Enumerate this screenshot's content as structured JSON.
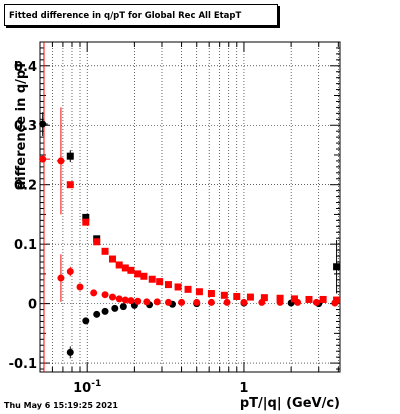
{
  "title": "Fitted difference in q/pT for Global Rec All EtapT",
  "timestamp": "Thu May  6 15:19:25 2021",
  "chart_data": {
    "type": "scatter",
    "title": "Fitted difference in q/pT for Global Rec All EtapT",
    "xlabel": "pT/|q| (GeV/c)",
    "ylabel": "difference in q/pT",
    "x_scale": "log",
    "xlim": [
      0.05,
      4.1
    ],
    "ylim": [
      -0.115,
      0.44
    ],
    "grid": true,
    "x_ticks": [
      {
        "value": 0.1,
        "label": "10",
        "sup": "-1"
      },
      {
        "value": 1,
        "label": "1",
        "sup": ""
      }
    ],
    "y_ticks": [
      {
        "value": -0.1,
        "label": "-0.1"
      },
      {
        "value": 0,
        "label": "0"
      },
      {
        "value": 0.1,
        "label": "0.1"
      },
      {
        "value": 0.2,
        "label": "0.2"
      },
      {
        "value": 0.3,
        "label": "0.3"
      },
      {
        "value": 0.4,
        "label": "0.4"
      }
    ],
    "red_line_x": 0.053,
    "series": [
      {
        "marker": "square",
        "color": "#000000",
        "points": [
          {
            "x": 0.078,
            "y": 0.248,
            "yerr": 0.01,
            "xerr": 0.003
          },
          {
            "x": 0.098,
            "y": 0.145,
            "yerr": 0.004,
            "xerr": 0.004
          },
          {
            "x": 0.115,
            "y": 0.109,
            "yerr": 0.003,
            "xerr": 0.005
          },
          {
            "x": 3.9,
            "y": 0.062,
            "yerr": 0.045,
            "xerr": 0.08
          }
        ]
      },
      {
        "marker": "circle",
        "color": "#000000",
        "points": [
          {
            "x": 0.052,
            "y": 0.302,
            "yerr": 0.02,
            "xerr": 0.004
          },
          {
            "x": 0.078,
            "y": -0.082,
            "yerr": 0.01,
            "xerr": 0.003
          },
          {
            "x": 0.098,
            "y": -0.029,
            "yerr": 0.004,
            "xerr": 0.003
          },
          {
            "x": 0.115,
            "y": -0.018,
            "yerr": 0.003,
            "xerr": 0.004
          },
          {
            "x": 0.13,
            "y": -0.013,
            "yerr": 0.002,
            "xerr": 0.004
          },
          {
            "x": 0.15,
            "y": -0.008,
            "yerr": 0.002,
            "xerr": 0.004
          },
          {
            "x": 0.17,
            "y": -0.005,
            "yerr": 0.001,
            "xerr": 0.004
          },
          {
            "x": 0.2,
            "y": -0.003,
            "yerr": 0.001,
            "xerr": 0.005
          },
          {
            "x": 0.25,
            "y": -0.002,
            "yerr": 0.001,
            "xerr": 0.005
          },
          {
            "x": 0.35,
            "y": -0.001,
            "yerr": 0.001,
            "xerr": 0.006
          },
          {
            "x": 0.5,
            "y": 0.0,
            "yerr": 0.001,
            "xerr": 0.008
          },
          {
            "x": 1.0,
            "y": 0.001,
            "yerr": 0.001,
            "xerr": 0.01
          },
          {
            "x": 2.0,
            "y": 0.001,
            "yerr": 0.001,
            "xerr": 0.02
          },
          {
            "x": 3.0,
            "y": 0.0,
            "yerr": 0.002,
            "xerr": 0.04
          }
        ]
      },
      {
        "marker": "square",
        "color": "#ff0000",
        "points": [
          {
            "x": 0.078,
            "y": 0.2,
            "yerr": 0.004,
            "xerr": 0.003
          },
          {
            "x": 0.098,
            "y": 0.137,
            "yerr": 0.003,
            "xerr": 0.004
          },
          {
            "x": 0.115,
            "y": 0.104,
            "yerr": 0.002,
            "xerr": 0.004
          },
          {
            "x": 0.13,
            "y": 0.088,
            "yerr": 0.002,
            "xerr": 0.004
          },
          {
            "x": 0.145,
            "y": 0.075,
            "yerr": 0.002,
            "xerr": 0.004
          },
          {
            "x": 0.16,
            "y": 0.065,
            "yerr": 0.002,
            "xerr": 0.004
          },
          {
            "x": 0.175,
            "y": 0.06,
            "yerr": 0.001,
            "xerr": 0.004
          },
          {
            "x": 0.19,
            "y": 0.056,
            "yerr": 0.001,
            "xerr": 0.004
          },
          {
            "x": 0.21,
            "y": 0.05,
            "yerr": 0.001,
            "xerr": 0.004
          },
          {
            "x": 0.23,
            "y": 0.046,
            "yerr": 0.001,
            "xerr": 0.004
          },
          {
            "x": 0.26,
            "y": 0.041,
            "yerr": 0.001,
            "xerr": 0.004
          },
          {
            "x": 0.29,
            "y": 0.037,
            "yerr": 0.001,
            "xerr": 0.004
          },
          {
            "x": 0.33,
            "y": 0.032,
            "yerr": 0.001,
            "xerr": 0.004
          },
          {
            "x": 0.38,
            "y": 0.028,
            "yerr": 0.001,
            "xerr": 0.004
          },
          {
            "x": 0.44,
            "y": 0.024,
            "yerr": 0.001,
            "xerr": 0.004
          },
          {
            "x": 0.52,
            "y": 0.02,
            "yerr": 0.001,
            "xerr": 0.004
          },
          {
            "x": 0.62,
            "y": 0.017,
            "yerr": 0.001,
            "xerr": 0.004
          },
          {
            "x": 0.75,
            "y": 0.014,
            "yerr": 0.001,
            "xerr": 0.004
          },
          {
            "x": 0.9,
            "y": 0.012,
            "yerr": 0.001,
            "xerr": 0.004
          },
          {
            "x": 1.1,
            "y": 0.011,
            "yerr": 0.001,
            "xerr": 0.004
          },
          {
            "x": 1.35,
            "y": 0.01,
            "yerr": 0.001,
            "xerr": 0.004
          },
          {
            "x": 1.7,
            "y": 0.009,
            "yerr": 0.001,
            "xerr": 0.004
          },
          {
            "x": 2.1,
            "y": 0.008,
            "yerr": 0.001,
            "xerr": 0.004
          },
          {
            "x": 2.6,
            "y": 0.007,
            "yerr": 0.001,
            "xerr": 0.004
          },
          {
            "x": 3.2,
            "y": 0.007,
            "yerr": 0.001,
            "xerr": 0.004
          },
          {
            "x": 3.9,
            "y": 0.006,
            "yerr": 0.002,
            "xerr": 0.004
          }
        ]
      },
      {
        "marker": "circle",
        "color": "#ff0000",
        "points": [
          {
            "x": 0.052,
            "y": 0.243,
            "yerr": 0.005,
            "xerr": 0.006
          },
          {
            "x": 0.068,
            "y": 0.24,
            "yerr": 0.09,
            "xerr": 0.004
          },
          {
            "x": 0.068,
            "y": 0.043,
            "yerr": 0.04,
            "xerr": 0.003
          },
          {
            "x": 0.078,
            "y": 0.054,
            "yerr": 0.008,
            "xerr": 0.003
          },
          {
            "x": 0.09,
            "y": 0.028,
            "yerr": 0.003,
            "xerr": 0.004
          },
          {
            "x": 0.11,
            "y": 0.018,
            "yerr": 0.002,
            "xerr": 0.004
          },
          {
            "x": 0.13,
            "y": 0.015,
            "yerr": 0.002,
            "xerr": 0.004
          },
          {
            "x": 0.145,
            "y": 0.011,
            "yerr": 0.001,
            "xerr": 0.004
          },
          {
            "x": 0.16,
            "y": 0.008,
            "yerr": 0.001,
            "xerr": 0.004
          },
          {
            "x": 0.175,
            "y": 0.006,
            "yerr": 0.001,
            "xerr": 0.004
          },
          {
            "x": 0.19,
            "y": 0.005,
            "yerr": 0.001,
            "xerr": 0.004
          },
          {
            "x": 0.21,
            "y": 0.004,
            "yerr": 0.001,
            "xerr": 0.004
          },
          {
            "x": 0.24,
            "y": 0.003,
            "yerr": 0.001,
            "xerr": 0.004
          },
          {
            "x": 0.28,
            "y": 0.003,
            "yerr": 0.001,
            "xerr": 0.004
          },
          {
            "x": 0.33,
            "y": 0.002,
            "yerr": 0.001,
            "xerr": 0.004
          },
          {
            "x": 0.4,
            "y": 0.002,
            "yerr": 0.001,
            "xerr": 0.004
          },
          {
            "x": 0.5,
            "y": 0.002,
            "yerr": 0.001,
            "xerr": 0.004
          },
          {
            "x": 0.62,
            "y": 0.002,
            "yerr": 0.001,
            "xerr": 0.004
          },
          {
            "x": 0.78,
            "y": 0.002,
            "yerr": 0.001,
            "xerr": 0.004
          },
          {
            "x": 1.0,
            "y": 0.002,
            "yerr": 0.001,
            "xerr": 0.004
          },
          {
            "x": 1.3,
            "y": 0.002,
            "yerr": 0.001,
            "xerr": 0.004
          },
          {
            "x": 1.7,
            "y": 0.002,
            "yerr": 0.001,
            "xerr": 0.004
          },
          {
            "x": 2.2,
            "y": 0.002,
            "yerr": 0.001,
            "xerr": 0.004
          },
          {
            "x": 2.9,
            "y": 0.002,
            "yerr": 0.001,
            "xerr": 0.004
          },
          {
            "x": 3.8,
            "y": 0.001,
            "yerr": 0.002,
            "xerr": 0.004
          }
        ]
      }
    ]
  }
}
